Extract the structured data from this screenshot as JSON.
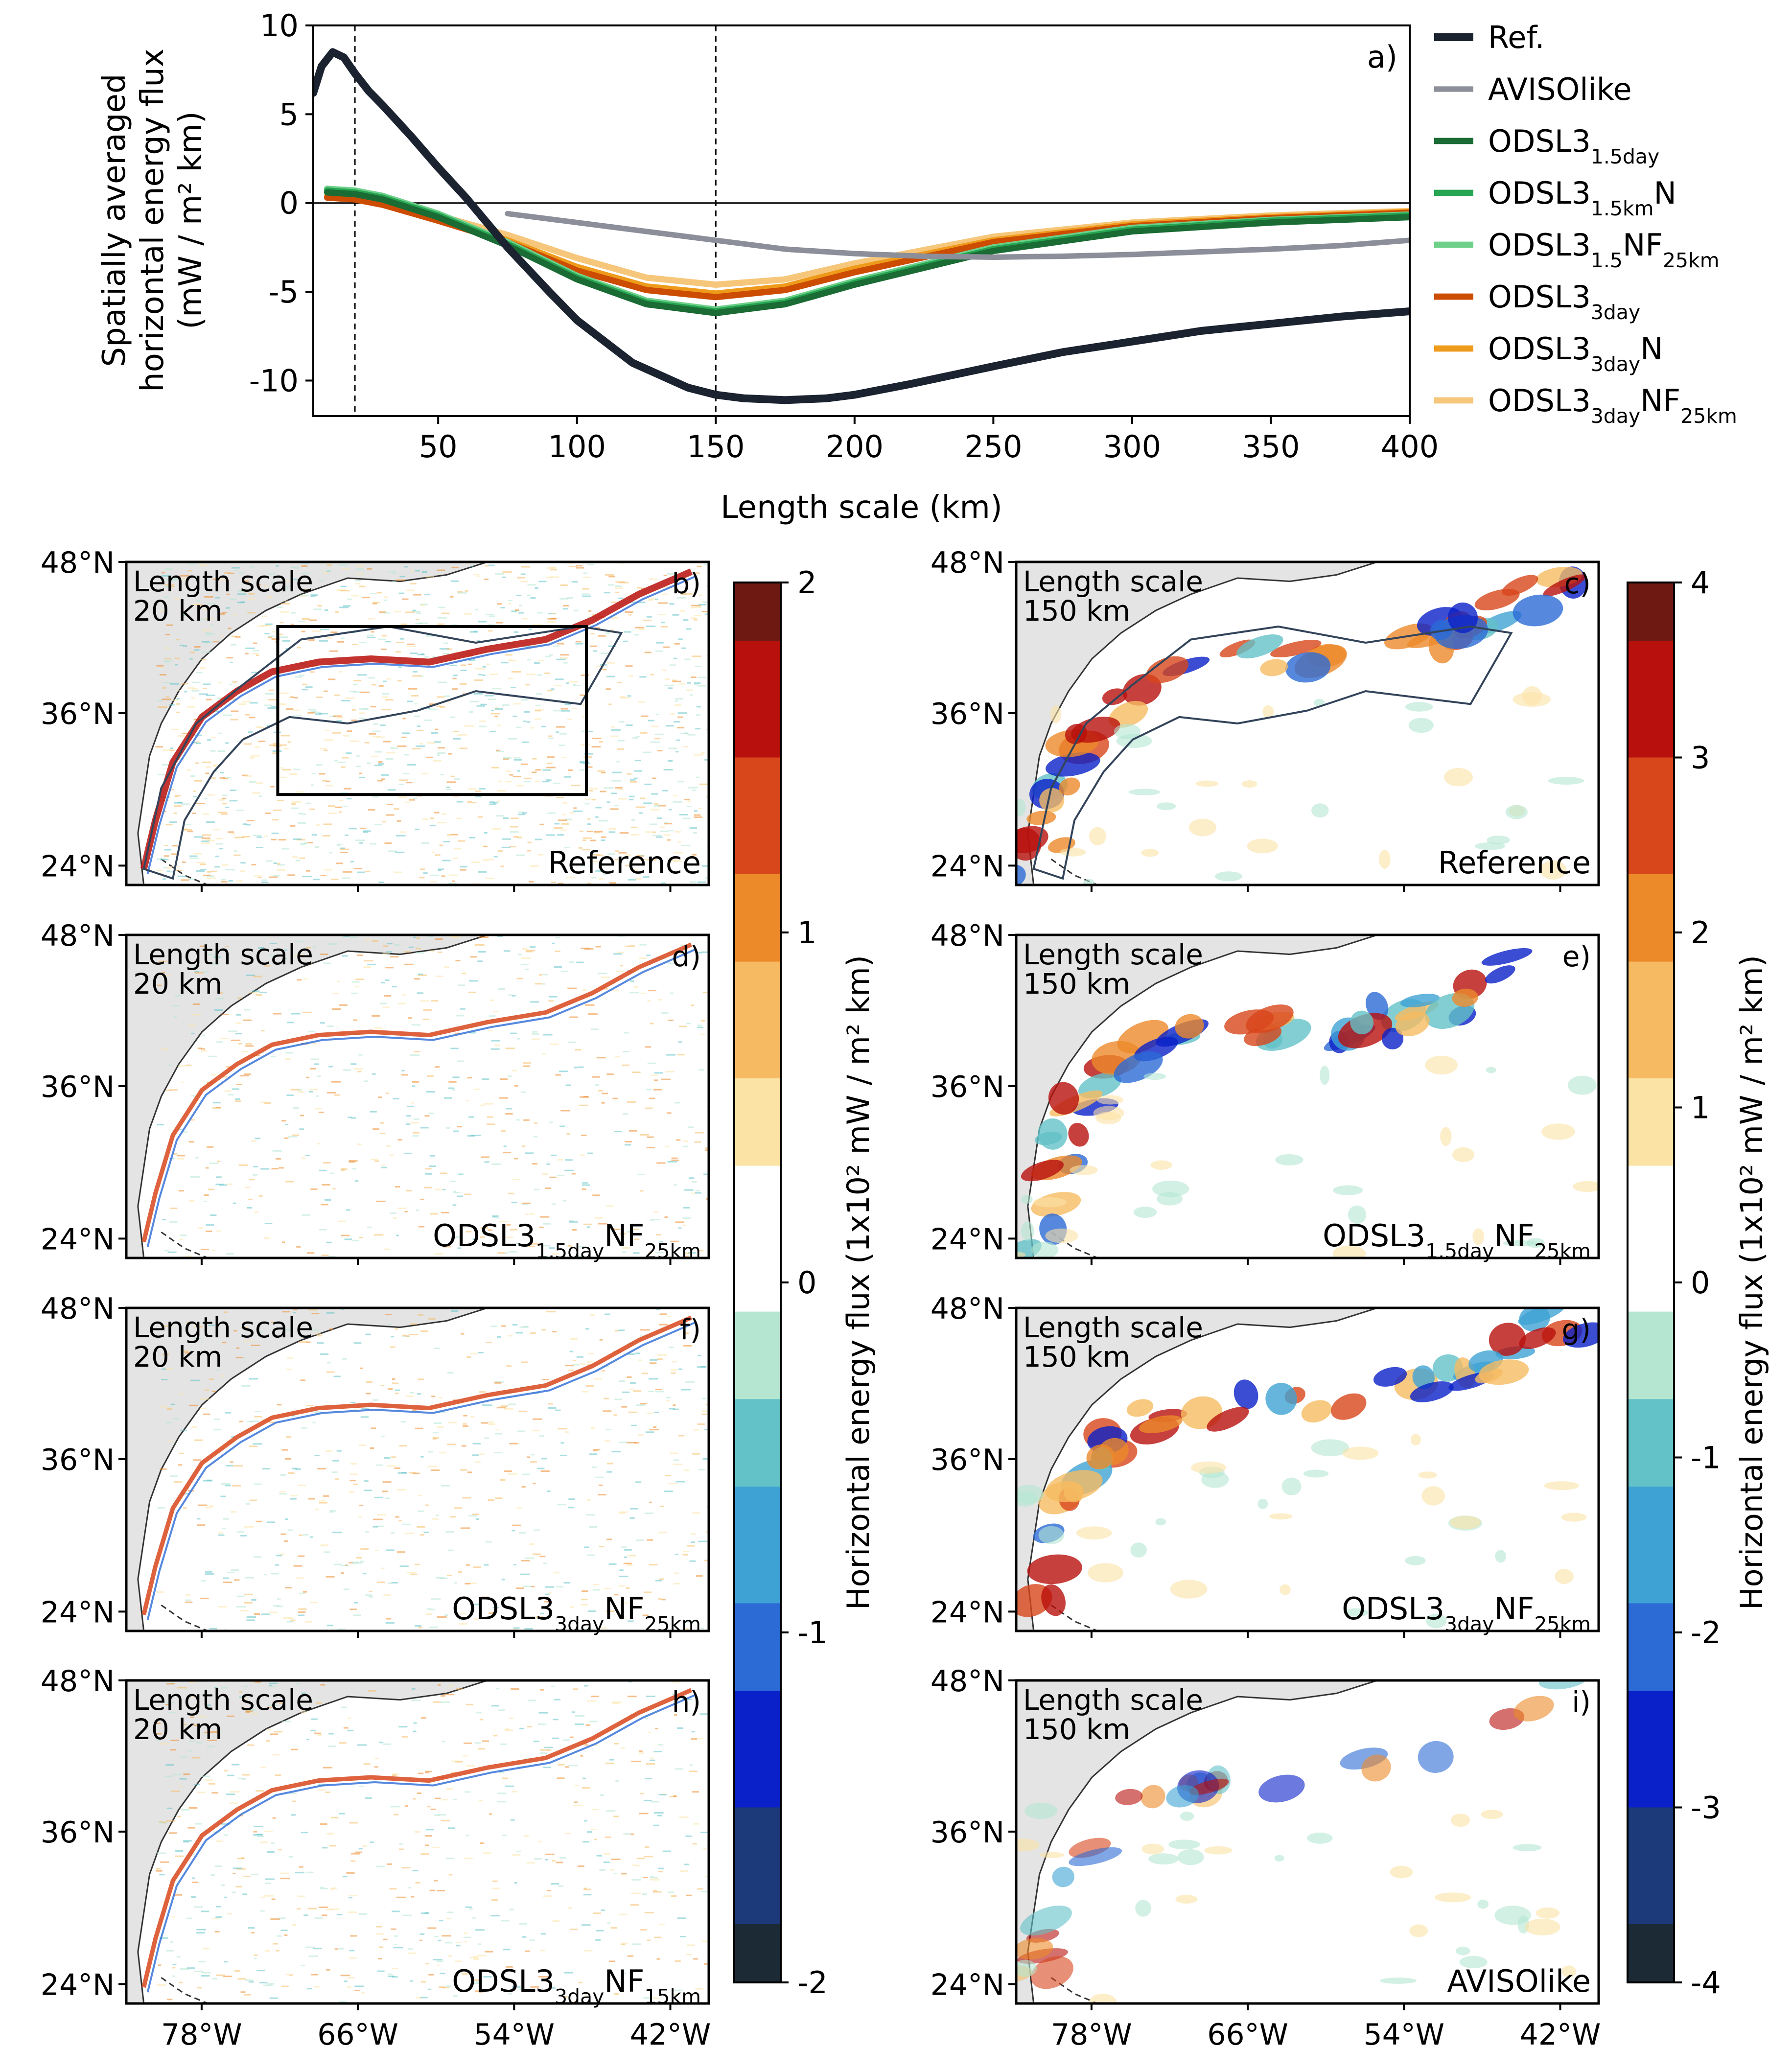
{
  "chart_data": [
    {
      "type": "line",
      "panel": "a)",
      "xlabel": "Length scale (km)",
      "ylabel": [
        "Spatially averaged",
        "horizontal energy flux",
        "(mW / m² km)"
      ],
      "xlim": [
        5,
        400
      ],
      "ylim": [
        -12,
        10
      ],
      "xticks": [
        50,
        100,
        150,
        200,
        250,
        300,
        350,
        400
      ],
      "yticks": [
        10,
        5,
        0,
        -5,
        -10
      ],
      "xtick_labels": [
        "50",
        "100",
        "150",
        "200",
        "250",
        "300",
        "350",
        "400"
      ],
      "ytick_labels": [
        "10",
        "5",
        "0",
        "-5",
        "-10"
      ],
      "vlines": [
        20,
        150
      ],
      "hline": 0,
      "series": [
        {
          "name": "Ref.",
          "base": "Ref.",
          "sub": "",
          "suffix": "",
          "sub2": "",
          "color": "#1b2230",
          "width": 5,
          "x": [
            5,
            8,
            12,
            16,
            20,
            25,
            30,
            40,
            50,
            60,
            75,
            90,
            100,
            120,
            140,
            150,
            160,
            175,
            190,
            200,
            220,
            250,
            275,
            300,
            325,
            350,
            375,
            400
          ],
          "y": [
            6.2,
            7.7,
            8.5,
            8.2,
            7.3,
            6.3,
            5.5,
            3.8,
            2.0,
            0.3,
            -2.5,
            -5.0,
            -6.6,
            -9.0,
            -10.4,
            -10.8,
            -11.0,
            -11.1,
            -11.0,
            -10.8,
            -10.2,
            -9.2,
            -8.4,
            -7.8,
            -7.2,
            -6.8,
            -6.4,
            -6.1
          ]
        },
        {
          "name": "AVISOlike",
          "base": "AVISOlike",
          "sub": "",
          "suffix": "",
          "sub2": "",
          "color": "#8c8f99",
          "width": 3.5,
          "x": [
            75,
            100,
            125,
            150,
            175,
            200,
            225,
            250,
            275,
            300,
            325,
            350,
            375,
            400
          ],
          "y": [
            -0.6,
            -1.1,
            -1.6,
            -2.1,
            -2.6,
            -2.85,
            -3.0,
            -3.05,
            -3.0,
            -2.9,
            -2.75,
            -2.6,
            -2.4,
            -2.1
          ]
        },
        {
          "name": "ODSL3 1.5day",
          "base": "ODSL3",
          "sub": "1.5day",
          "suffix": "",
          "sub2": "",
          "color": "#1a6b34",
          "width": 4,
          "x": [
            10,
            20,
            30,
            50,
            75,
            100,
            125,
            150,
            175,
            200,
            250,
            300,
            350,
            400
          ],
          "y": [
            0.6,
            0.5,
            0.2,
            -0.8,
            -2.4,
            -4.3,
            -5.7,
            -6.2,
            -5.7,
            -4.6,
            -2.7,
            -1.6,
            -1.1,
            -0.8
          ]
        },
        {
          "name": "ODSL3 1.5km N",
          "base": "ODSL3",
          "sub": "1.5km",
          "suffix": "N",
          "sub2": "",
          "color": "#26a552",
          "width": 4,
          "x": [
            10,
            20,
            30,
            50,
            75,
            100,
            125,
            150,
            175,
            200,
            250,
            300,
            350,
            400
          ],
          "y": [
            0.7,
            0.6,
            0.3,
            -0.7,
            -2.3,
            -4.2,
            -5.6,
            -6.1,
            -5.6,
            -4.5,
            -2.6,
            -1.5,
            -1.0,
            -0.7
          ]
        },
        {
          "name": "ODSL3 1.5 NF 25km",
          "base": "ODSL3",
          "sub": "1.5",
          "suffix": "NF",
          "sub2": "25km",
          "color": "#6fd08a",
          "width": 4,
          "x": [
            10,
            20,
            30,
            50,
            75,
            100,
            125,
            150,
            175,
            200,
            250,
            300,
            350,
            400
          ],
          "y": [
            0.8,
            0.7,
            0.4,
            -0.6,
            -2.2,
            -4.1,
            -5.5,
            -6.0,
            -5.5,
            -4.4,
            -2.5,
            -1.4,
            -0.95,
            -0.65
          ]
        },
        {
          "name": "ODSL3 3day",
          "base": "ODSL3",
          "sub": "3day",
          "suffix": "",
          "sub2": "",
          "color": "#cc4c02",
          "width": 4,
          "x": [
            10,
            20,
            30,
            50,
            75,
            100,
            125,
            150,
            175,
            200,
            250,
            300,
            350,
            400
          ],
          "y": [
            0.3,
            0.2,
            -0.1,
            -1.0,
            -2.2,
            -3.8,
            -4.9,
            -5.3,
            -4.9,
            -3.9,
            -2.2,
            -1.3,
            -0.85,
            -0.55
          ]
        },
        {
          "name": "ODSL3 3day N",
          "base": "ODSL3",
          "sub": "3day",
          "suffix": "N",
          "sub2": "",
          "color": "#ee9b1c",
          "width": 4,
          "x": [
            10,
            20,
            30,
            50,
            75,
            100,
            125,
            150,
            175,
            200,
            250,
            300,
            350,
            400
          ],
          "y": [
            0.35,
            0.25,
            0.0,
            -0.9,
            -2.1,
            -3.6,
            -4.7,
            -5.1,
            -4.7,
            -3.7,
            -2.1,
            -1.2,
            -0.8,
            -0.5
          ]
        },
        {
          "name": "ODSL3 3day NF 25km",
          "base": "ODSL3",
          "sub": "3day",
          "suffix": "NF",
          "sub2": "25km",
          "color": "#f6c77a",
          "width": 4,
          "x": [
            10,
            20,
            30,
            50,
            75,
            100,
            125,
            150,
            175,
            200,
            250,
            300,
            350,
            400
          ],
          "y": [
            0.4,
            0.3,
            0.1,
            -0.7,
            -1.8,
            -3.1,
            -4.2,
            -4.6,
            -4.3,
            -3.4,
            -1.9,
            -1.1,
            -0.7,
            -0.45
          ]
        }
      ]
    },
    {
      "type": "heatmap",
      "maps": [
        {
          "panel": "b)",
          "scale": "Length scale",
          "km": "20 km",
          "name": "Reference",
          "base": "Reference",
          "sub": "",
          "suffix": "",
          "sub2": "",
          "col": 0,
          "row": 0,
          "box": true,
          "contour": true
        },
        {
          "panel": "c)",
          "scale": "Length scale",
          "km": "150 km",
          "name": "Reference",
          "base": "Reference",
          "sub": "",
          "suffix": "",
          "sub2": "",
          "col": 1,
          "row": 0,
          "box": false,
          "contour": true
        },
        {
          "panel": "d)",
          "scale": "Length scale",
          "km": "20 km",
          "name": "ODSL3 1.5day NF 25km",
          "base": "ODSL3",
          "sub": "1.5day",
          "suffix": "NF",
          "sub2": "25km",
          "col": 0,
          "row": 1,
          "box": false,
          "contour": false
        },
        {
          "panel": "e)",
          "scale": "Length scale",
          "km": "150 km",
          "name": "ODSL3 1.5day NF 25km",
          "base": "ODSL3",
          "sub": "1.5day",
          "suffix": "NF",
          "sub2": "25km",
          "col": 1,
          "row": 1,
          "box": false,
          "contour": false
        },
        {
          "panel": "f)",
          "scale": "Length scale",
          "km": "20 km",
          "name": "ODSL3 3day NF 25km",
          "base": "ODSL3",
          "sub": "3day",
          "suffix": "NF",
          "sub2": "25km",
          "col": 0,
          "row": 2,
          "box": false,
          "contour": false
        },
        {
          "panel": "g)",
          "scale": "Length scale",
          "km": "150 km",
          "name": "ODSL3 3day NF 25km",
          "base": "ODSL3",
          "sub": "3day",
          "suffix": "NF",
          "sub2": "25km",
          "col": 1,
          "row": 2,
          "box": false,
          "contour": false
        },
        {
          "panel": "h)",
          "scale": "Length scale",
          "km": "20 km",
          "name": "ODSL3 3day NF 15km",
          "base": "ODSL3",
          "sub": "3day",
          "suffix": "NF",
          "sub2": "15km",
          "col": 0,
          "row": 3,
          "box": false,
          "contour": false
        },
        {
          "panel": "i)",
          "scale": "Length scale",
          "km": "150 km",
          "name": "AVISOlike",
          "base": "AVISOlike",
          "sub": "",
          "suffix": "",
          "sub2": "",
          "col": 1,
          "row": 3,
          "box": false,
          "contour": false
        }
      ],
      "lat_ticks": [
        "48°N",
        "36°N",
        "24°N"
      ],
      "lon_ticks": [
        "78°W",
        "66°W",
        "54°W",
        "42°W"
      ],
      "colorbars": [
        {
          "label": "Horizontal energy flux (1x10² mW / m² km)",
          "ticks": [
            2,
            1,
            0,
            -1,
            -2
          ],
          "tick_labels": [
            "2",
            "1",
            "0",
            "-1",
            "-2"
          ],
          "range": [
            -2,
            2
          ]
        },
        {
          "label": "Horizontal energy flux (1x10² mW / m² km)",
          "ticks": [
            4,
            3,
            2,
            1,
            0,
            -1,
            -2,
            -3,
            -4
          ],
          "tick_labels": [
            "4",
            "3",
            "2",
            "1",
            "0",
            "-1",
            "-2",
            "-3",
            "-4"
          ],
          "range": [
            -4,
            4
          ]
        }
      ],
      "colormap": [
        "#1c2a36",
        "#1c3a7a",
        "#0a20c8",
        "#2c6ad6",
        "#3ea3d4",
        "#63c2c8",
        "#b4e6d2",
        "#ffffff",
        "#fbe3a6",
        "#f6bb62",
        "#ec8a2a",
        "#d8461c",
        "#b8100c",
        "#6e1a12"
      ]
    }
  ]
}
